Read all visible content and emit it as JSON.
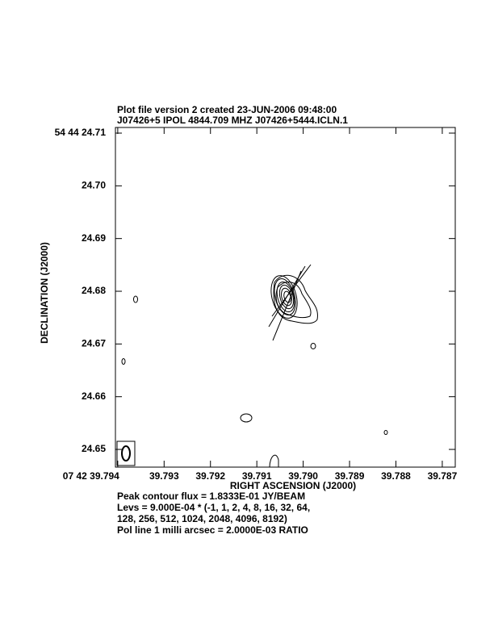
{
  "chart_data": {
    "type": "contour",
    "title": "Plot file version 2  created 23-JUN-2006 09:48:00",
    "subtitle": "J07426+5  IPOL  4844.709 MHZ  J07426+5444.ICLN.1",
    "xlabel": "RIGHT ASCENSION (J2000)",
    "ylabel": "DECLINATION (J2000)",
    "xlim": [
      39.79405,
      39.78672
    ],
    "ylim": [
      24.64664,
      24.71107
    ],
    "xticks": [
      {
        "value": 39.794,
        "label": "07 42 39.794"
      },
      39.793,
      {
        "value": 39.792,
        "label": "39.792"
      },
      39.791,
      {
        "value": 39.79,
        "label": "39.790"
      },
      39.789,
      39.788,
      39.787
    ],
    "yticks": [
      {
        "value": 24.71,
        "label": "54 44 24.71"
      },
      {
        "value": 24.7,
        "label": "24.70"
      },
      24.69,
      24.68,
      24.67,
      24.66,
      24.65
    ],
    "notes": [
      "Peak contour flux =  1.8333E-01 JY/BEAM",
      "Levs = 9.000E-04 * (-1, 1, 2, 4, 8, 16, 32, 64,",
      "128, 256, 512, 1024, 2048, 4096, 8192)",
      "Pol line 1 milli arcsec =  2.0000E-03 RATIO"
    ]
  }
}
